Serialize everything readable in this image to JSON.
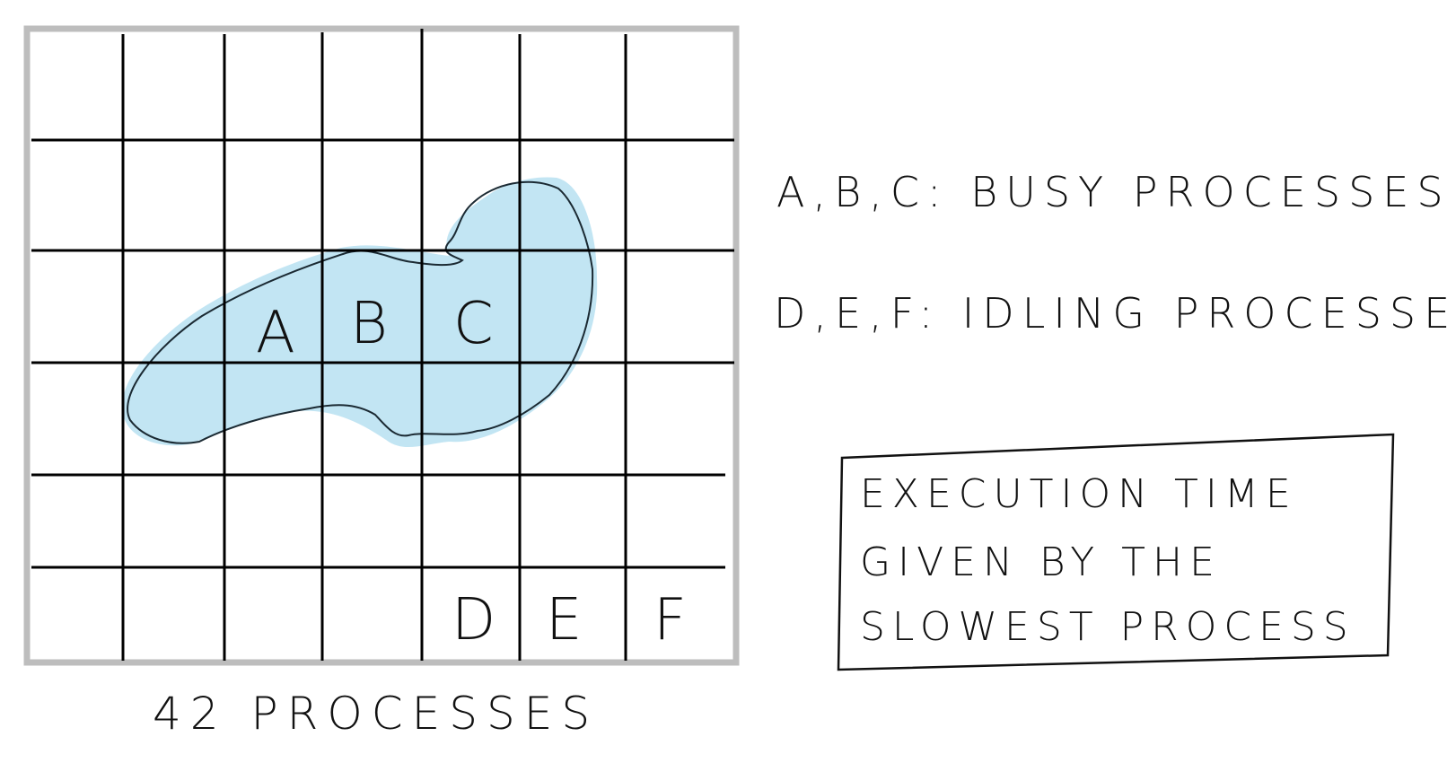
{
  "diagram": {
    "grid": {
      "columns": 7,
      "rows": 6,
      "process_count_label": "42 PROCESSES"
    },
    "busy_region": {
      "fill_color": "#c2e5f3",
      "outline_color": "#1b2a33"
    },
    "cells": {
      "busy": [
        "A",
        "B",
        "C"
      ],
      "idle": [
        "D",
        "E",
        "F"
      ]
    },
    "legend": {
      "busy": "A,B,C: BUSY PROCESSES",
      "idle": "D,E,F: IDLING PROCESSES"
    },
    "note": {
      "lines": [
        "EXECUTION TIME",
        "GIVEN BY THE",
        "SLOWEST PROCESS"
      ]
    },
    "colors": {
      "grid_line": "#000000",
      "frame": "#bdbdbd",
      "ink": "#111111"
    }
  }
}
